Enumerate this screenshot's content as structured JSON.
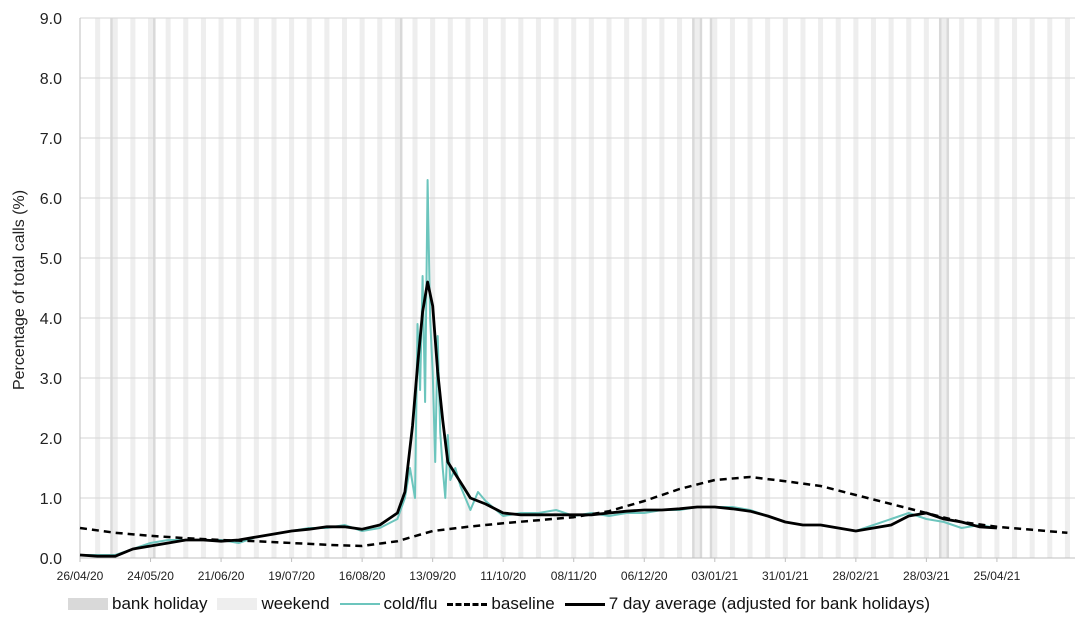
{
  "chart_data": {
    "type": "line",
    "ylabel": "Percentage of total calls (%)",
    "xlabel": "",
    "ylim": [
      0,
      9
    ],
    "y_ticks": [
      "0.0",
      "1.0",
      "2.0",
      "3.0",
      "4.0",
      "5.0",
      "6.0",
      "7.0",
      "8.0",
      "9.0"
    ],
    "x_range": [
      "2020-04-26",
      "2021-05-26"
    ],
    "x_ticks": [
      "26/04/20",
      "24/05/20",
      "21/06/20",
      "19/07/20",
      "16/08/20",
      "13/09/20",
      "11/10/20",
      "08/11/20",
      "06/12/20",
      "03/01/21",
      "31/01/21",
      "28/02/21",
      "28/03/21",
      "25/04/21"
    ],
    "bank_holidays": [
      "2020-05-08",
      "2020-05-25",
      "2020-08-31",
      "2020-12-25",
      "2020-12-28",
      "2021-01-01",
      "2021-04-02",
      "2021-04-05"
    ],
    "legend": [
      {
        "label": "bank holiday",
        "color": "#d9d9d9"
      },
      {
        "label": "weekend",
        "color": "#eeeeee"
      },
      {
        "label": "cold/flu",
        "color": "#6cc5bd"
      },
      {
        "label": "baseline",
        "color": "#000000"
      },
      {
        "label": "7 day average (adjusted for bank holidays)",
        "color": "#000000"
      }
    ],
    "series": [
      {
        "name": "cold/flu",
        "x": [
          "2020-04-26",
          "2020-05-03",
          "2020-05-10",
          "2020-05-17",
          "2020-05-24",
          "2020-05-31",
          "2020-06-07",
          "2020-06-14",
          "2020-06-21",
          "2020-06-28",
          "2020-07-05",
          "2020-07-12",
          "2020-07-19",
          "2020-07-26",
          "2020-08-02",
          "2020-08-09",
          "2020-08-16",
          "2020-08-23",
          "2020-08-30",
          "2020-09-02",
          "2020-09-04",
          "2020-09-06",
          "2020-09-07",
          "2020-09-08",
          "2020-09-09",
          "2020-09-10",
          "2020-09-11",
          "2020-09-12",
          "2020-09-13",
          "2020-09-14",
          "2020-09-15",
          "2020-09-16",
          "2020-09-17",
          "2020-09-18",
          "2020-09-19",
          "2020-09-20",
          "2020-09-22",
          "2020-09-24",
          "2020-09-26",
          "2020-09-28",
          "2020-10-01",
          "2020-10-04",
          "2020-10-11",
          "2020-10-18",
          "2020-10-25",
          "2020-11-01",
          "2020-11-08",
          "2020-11-15",
          "2020-11-22",
          "2020-11-29",
          "2020-12-06",
          "2020-12-13",
          "2020-12-20",
          "2020-12-27",
          "2021-01-03",
          "2021-01-10",
          "2021-01-17",
          "2021-01-24",
          "2021-01-31",
          "2021-02-07",
          "2021-02-14",
          "2021-02-21",
          "2021-02-28",
          "2021-03-07",
          "2021-03-14",
          "2021-03-21",
          "2021-03-28",
          "2021-04-04",
          "2021-04-11",
          "2021-04-18",
          "2021-04-25"
        ],
        "values": [
          0.05,
          0.05,
          0.05,
          0.15,
          0.25,
          0.3,
          0.3,
          0.3,
          0.3,
          0.25,
          0.35,
          0.4,
          0.45,
          0.5,
          0.5,
          0.55,
          0.45,
          0.5,
          0.65,
          1.0,
          1.5,
          1.0,
          3.9,
          2.8,
          4.7,
          2.6,
          6.3,
          4.0,
          3.1,
          1.6,
          3.7,
          2.1,
          1.5,
          1.0,
          2.05,
          1.3,
          1.5,
          1.2,
          1.0,
          0.8,
          1.1,
          0.95,
          0.7,
          0.75,
          0.75,
          0.8,
          0.7,
          0.75,
          0.7,
          0.75,
          0.75,
          0.8,
          0.8,
          0.85,
          0.85,
          0.85,
          0.8,
          0.7,
          0.6,
          0.55,
          0.55,
          0.5,
          0.45,
          0.55,
          0.65,
          0.75,
          0.65,
          0.6,
          0.5,
          0.55,
          0.5
        ]
      },
      {
        "name": "baseline",
        "x": [
          "2020-04-26",
          "2020-05-10",
          "2020-05-24",
          "2020-06-07",
          "2020-06-21",
          "2020-07-05",
          "2020-07-19",
          "2020-08-02",
          "2020-08-16",
          "2020-08-30",
          "2020-09-13",
          "2020-09-27",
          "2020-10-11",
          "2020-10-25",
          "2020-11-08",
          "2020-11-22",
          "2020-12-06",
          "2020-12-20",
          "2021-01-03",
          "2021-01-17",
          "2021-01-31",
          "2021-02-14",
          "2021-02-28",
          "2021-03-14",
          "2021-03-28",
          "2021-04-11",
          "2021-04-25",
          "2021-05-09",
          "2021-05-23"
        ],
        "values": [
          0.5,
          0.42,
          0.37,
          0.33,
          0.3,
          0.28,
          0.25,
          0.22,
          0.2,
          0.28,
          0.45,
          0.52,
          0.58,
          0.63,
          0.68,
          0.78,
          0.95,
          1.15,
          1.3,
          1.35,
          1.28,
          1.2,
          1.05,
          0.9,
          0.75,
          0.6,
          0.52,
          0.47,
          0.42
        ]
      },
      {
        "name": "7 day average (adjusted for bank holidays)",
        "x": [
          "2020-04-26",
          "2020-05-03",
          "2020-05-10",
          "2020-05-17",
          "2020-05-24",
          "2020-05-31",
          "2020-06-07",
          "2020-06-14",
          "2020-06-21",
          "2020-06-28",
          "2020-07-05",
          "2020-07-12",
          "2020-07-19",
          "2020-07-26",
          "2020-08-02",
          "2020-08-09",
          "2020-08-16",
          "2020-08-23",
          "2020-08-30",
          "2020-09-02",
          "2020-09-05",
          "2020-09-07",
          "2020-09-09",
          "2020-09-11",
          "2020-09-13",
          "2020-09-15",
          "2020-09-17",
          "2020-09-19",
          "2020-09-22",
          "2020-09-25",
          "2020-09-28",
          "2020-10-01",
          "2020-10-04",
          "2020-10-11",
          "2020-10-18",
          "2020-10-25",
          "2020-11-01",
          "2020-11-08",
          "2020-11-15",
          "2020-11-22",
          "2020-11-29",
          "2020-12-06",
          "2020-12-13",
          "2020-12-20",
          "2020-12-27",
          "2021-01-03",
          "2021-01-10",
          "2021-01-17",
          "2021-01-24",
          "2021-01-31",
          "2021-02-07",
          "2021-02-14",
          "2021-02-21",
          "2021-02-28",
          "2021-03-07",
          "2021-03-14",
          "2021-03-21",
          "2021-03-28",
          "2021-04-04",
          "2021-04-11",
          "2021-04-18",
          "2021-04-25"
        ],
        "values": [
          0.05,
          0.03,
          0.03,
          0.15,
          0.2,
          0.25,
          0.3,
          0.3,
          0.28,
          0.3,
          0.35,
          0.4,
          0.45,
          0.48,
          0.52,
          0.52,
          0.48,
          0.55,
          0.75,
          1.1,
          2.2,
          3.2,
          4.1,
          4.6,
          4.2,
          3.1,
          2.3,
          1.6,
          1.4,
          1.2,
          1.0,
          0.95,
          0.9,
          0.75,
          0.72,
          0.72,
          0.72,
          0.72,
          0.72,
          0.75,
          0.78,
          0.8,
          0.8,
          0.82,
          0.85,
          0.85,
          0.82,
          0.78,
          0.7,
          0.6,
          0.55,
          0.55,
          0.5,
          0.45,
          0.5,
          0.55,
          0.7,
          0.75,
          0.65,
          0.6,
          0.52,
          0.5
        ]
      }
    ]
  }
}
